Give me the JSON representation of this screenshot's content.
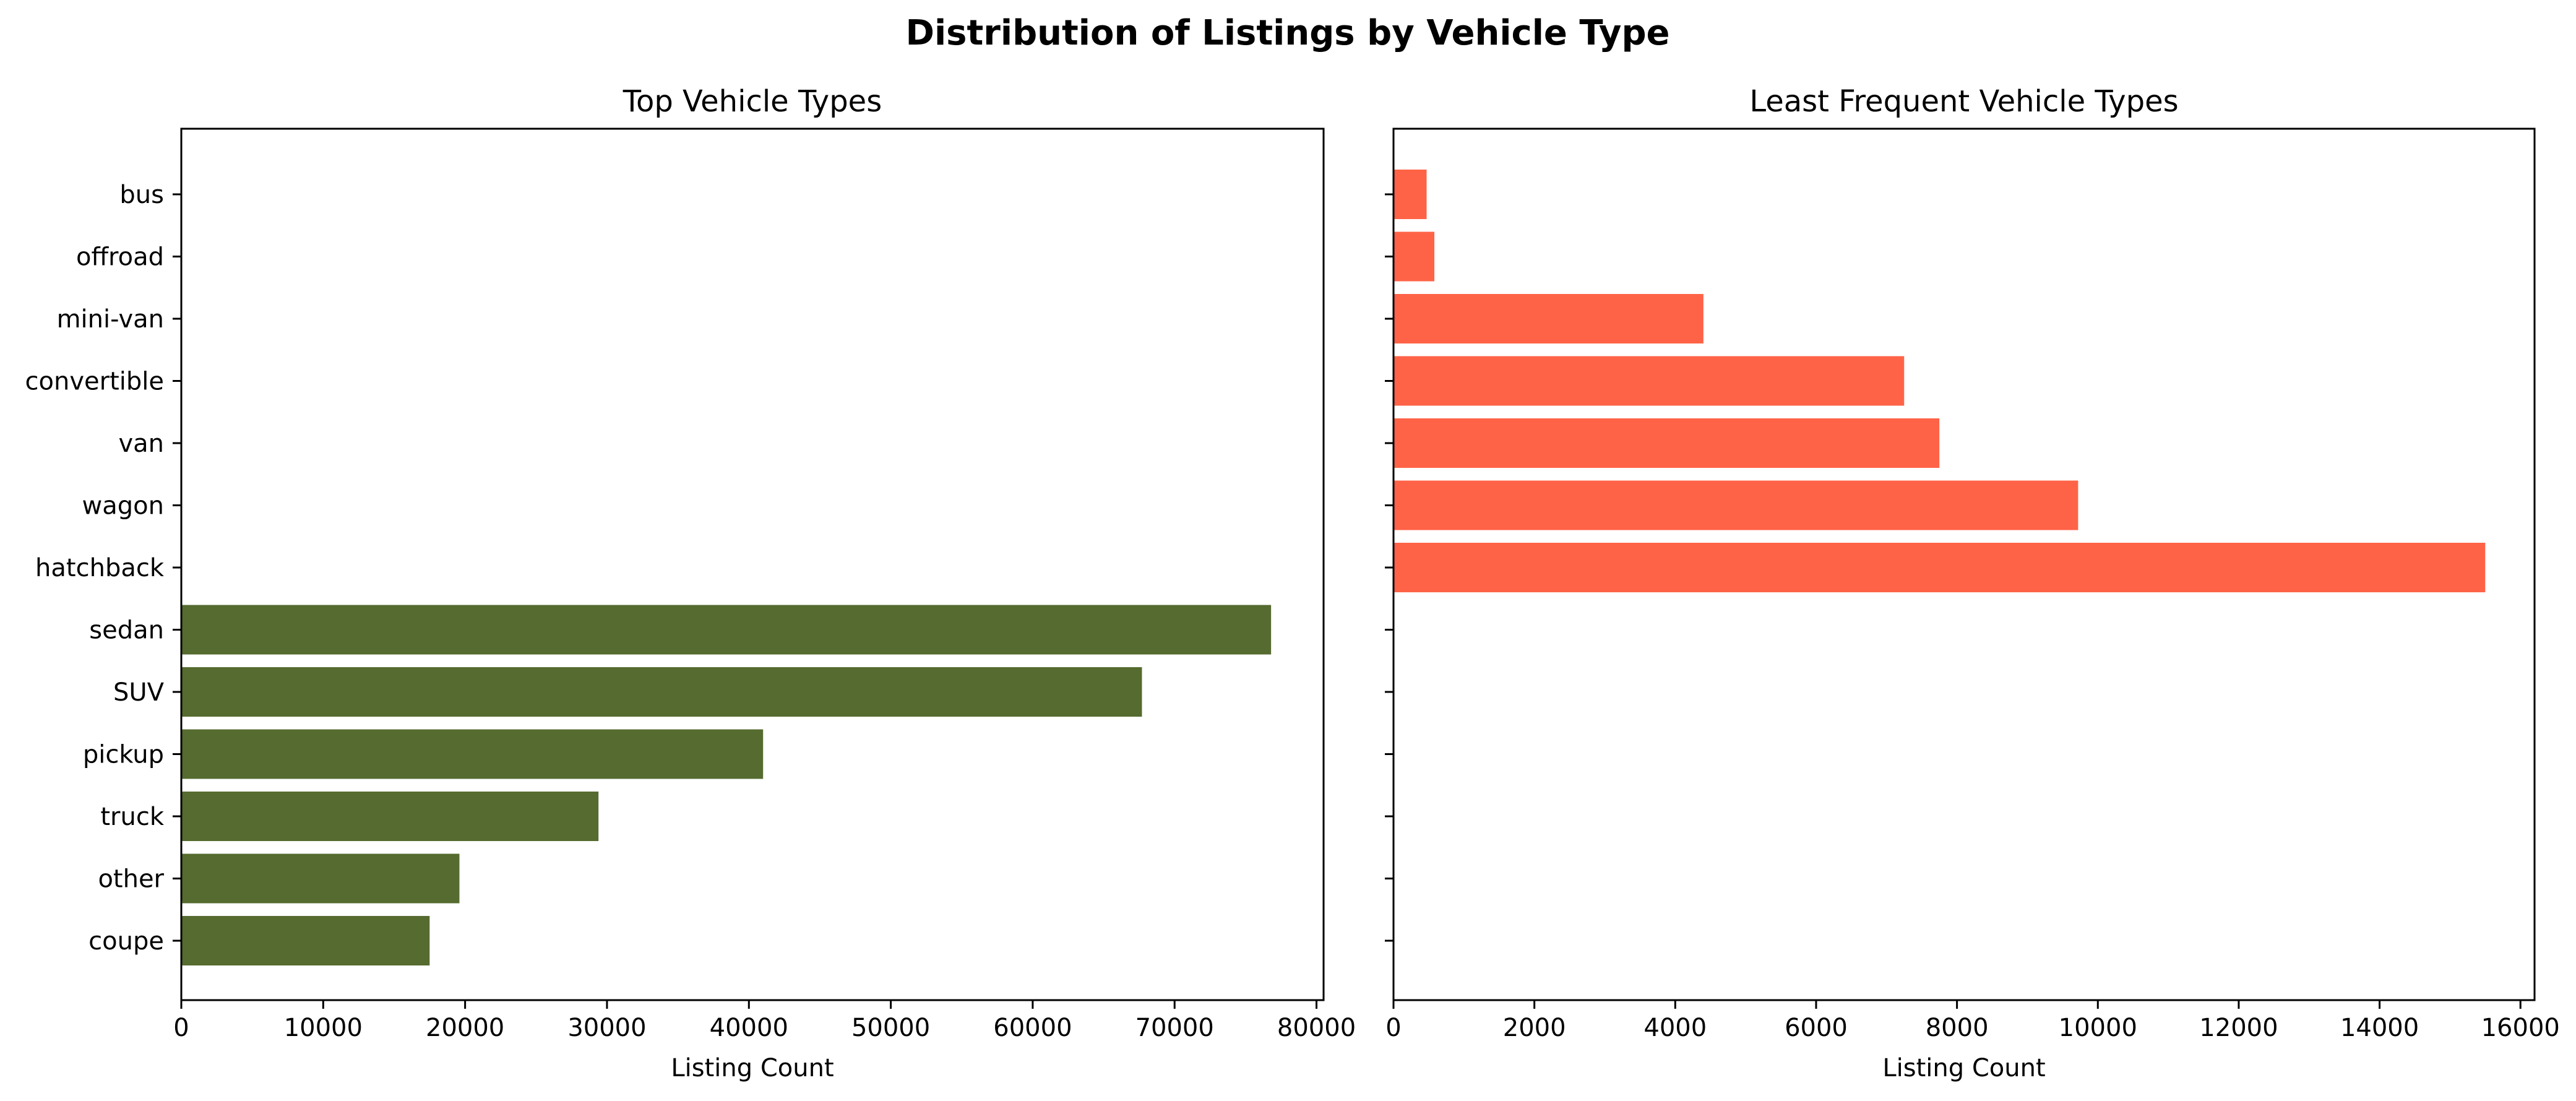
{
  "figure_title": "Distribution of Listings by Vehicle Type",
  "chart_data": [
    {
      "type": "bar",
      "orientation": "horizontal",
      "title": "Top Vehicle Types",
      "xlabel": "Listing Count",
      "ylabel": "",
      "categories": [
        "bus",
        "offroad",
        "mini-van",
        "convertible",
        "van",
        "wagon",
        "hatchback",
        "sedan",
        "SUV",
        "pickup",
        "truck",
        "other",
        "coupe"
      ],
      "values": [
        null,
        null,
        null,
        null,
        null,
        null,
        null,
        76800,
        67700,
        41000,
        29400,
        19600,
        17500
      ],
      "xlim": [
        0,
        80500
      ],
      "xticks": [
        0,
        10000,
        20000,
        30000,
        40000,
        50000,
        60000,
        70000,
        80000
      ],
      "color": "#556b2f",
      "grid": false
    },
    {
      "type": "bar",
      "orientation": "horizontal",
      "title": "Least Frequent Vehicle Types",
      "xlabel": "Listing Count",
      "ylabel": "",
      "categories": [
        "bus",
        "offroad",
        "mini-van",
        "convertible",
        "van",
        "wagon",
        "hatchback",
        "sedan",
        "SUV",
        "pickup",
        "truck",
        "other",
        "coupe"
      ],
      "values": [
        470,
        580,
        4400,
        7250,
        7750,
        9720,
        15500,
        null,
        null,
        null,
        null,
        null,
        null
      ],
      "xlim": [
        0,
        16200
      ],
      "xticks": [
        0,
        2000,
        4000,
        6000,
        8000,
        10000,
        12000,
        14000,
        16000
      ],
      "color": "#ff6347",
      "grid": false,
      "shared_y": true
    }
  ]
}
